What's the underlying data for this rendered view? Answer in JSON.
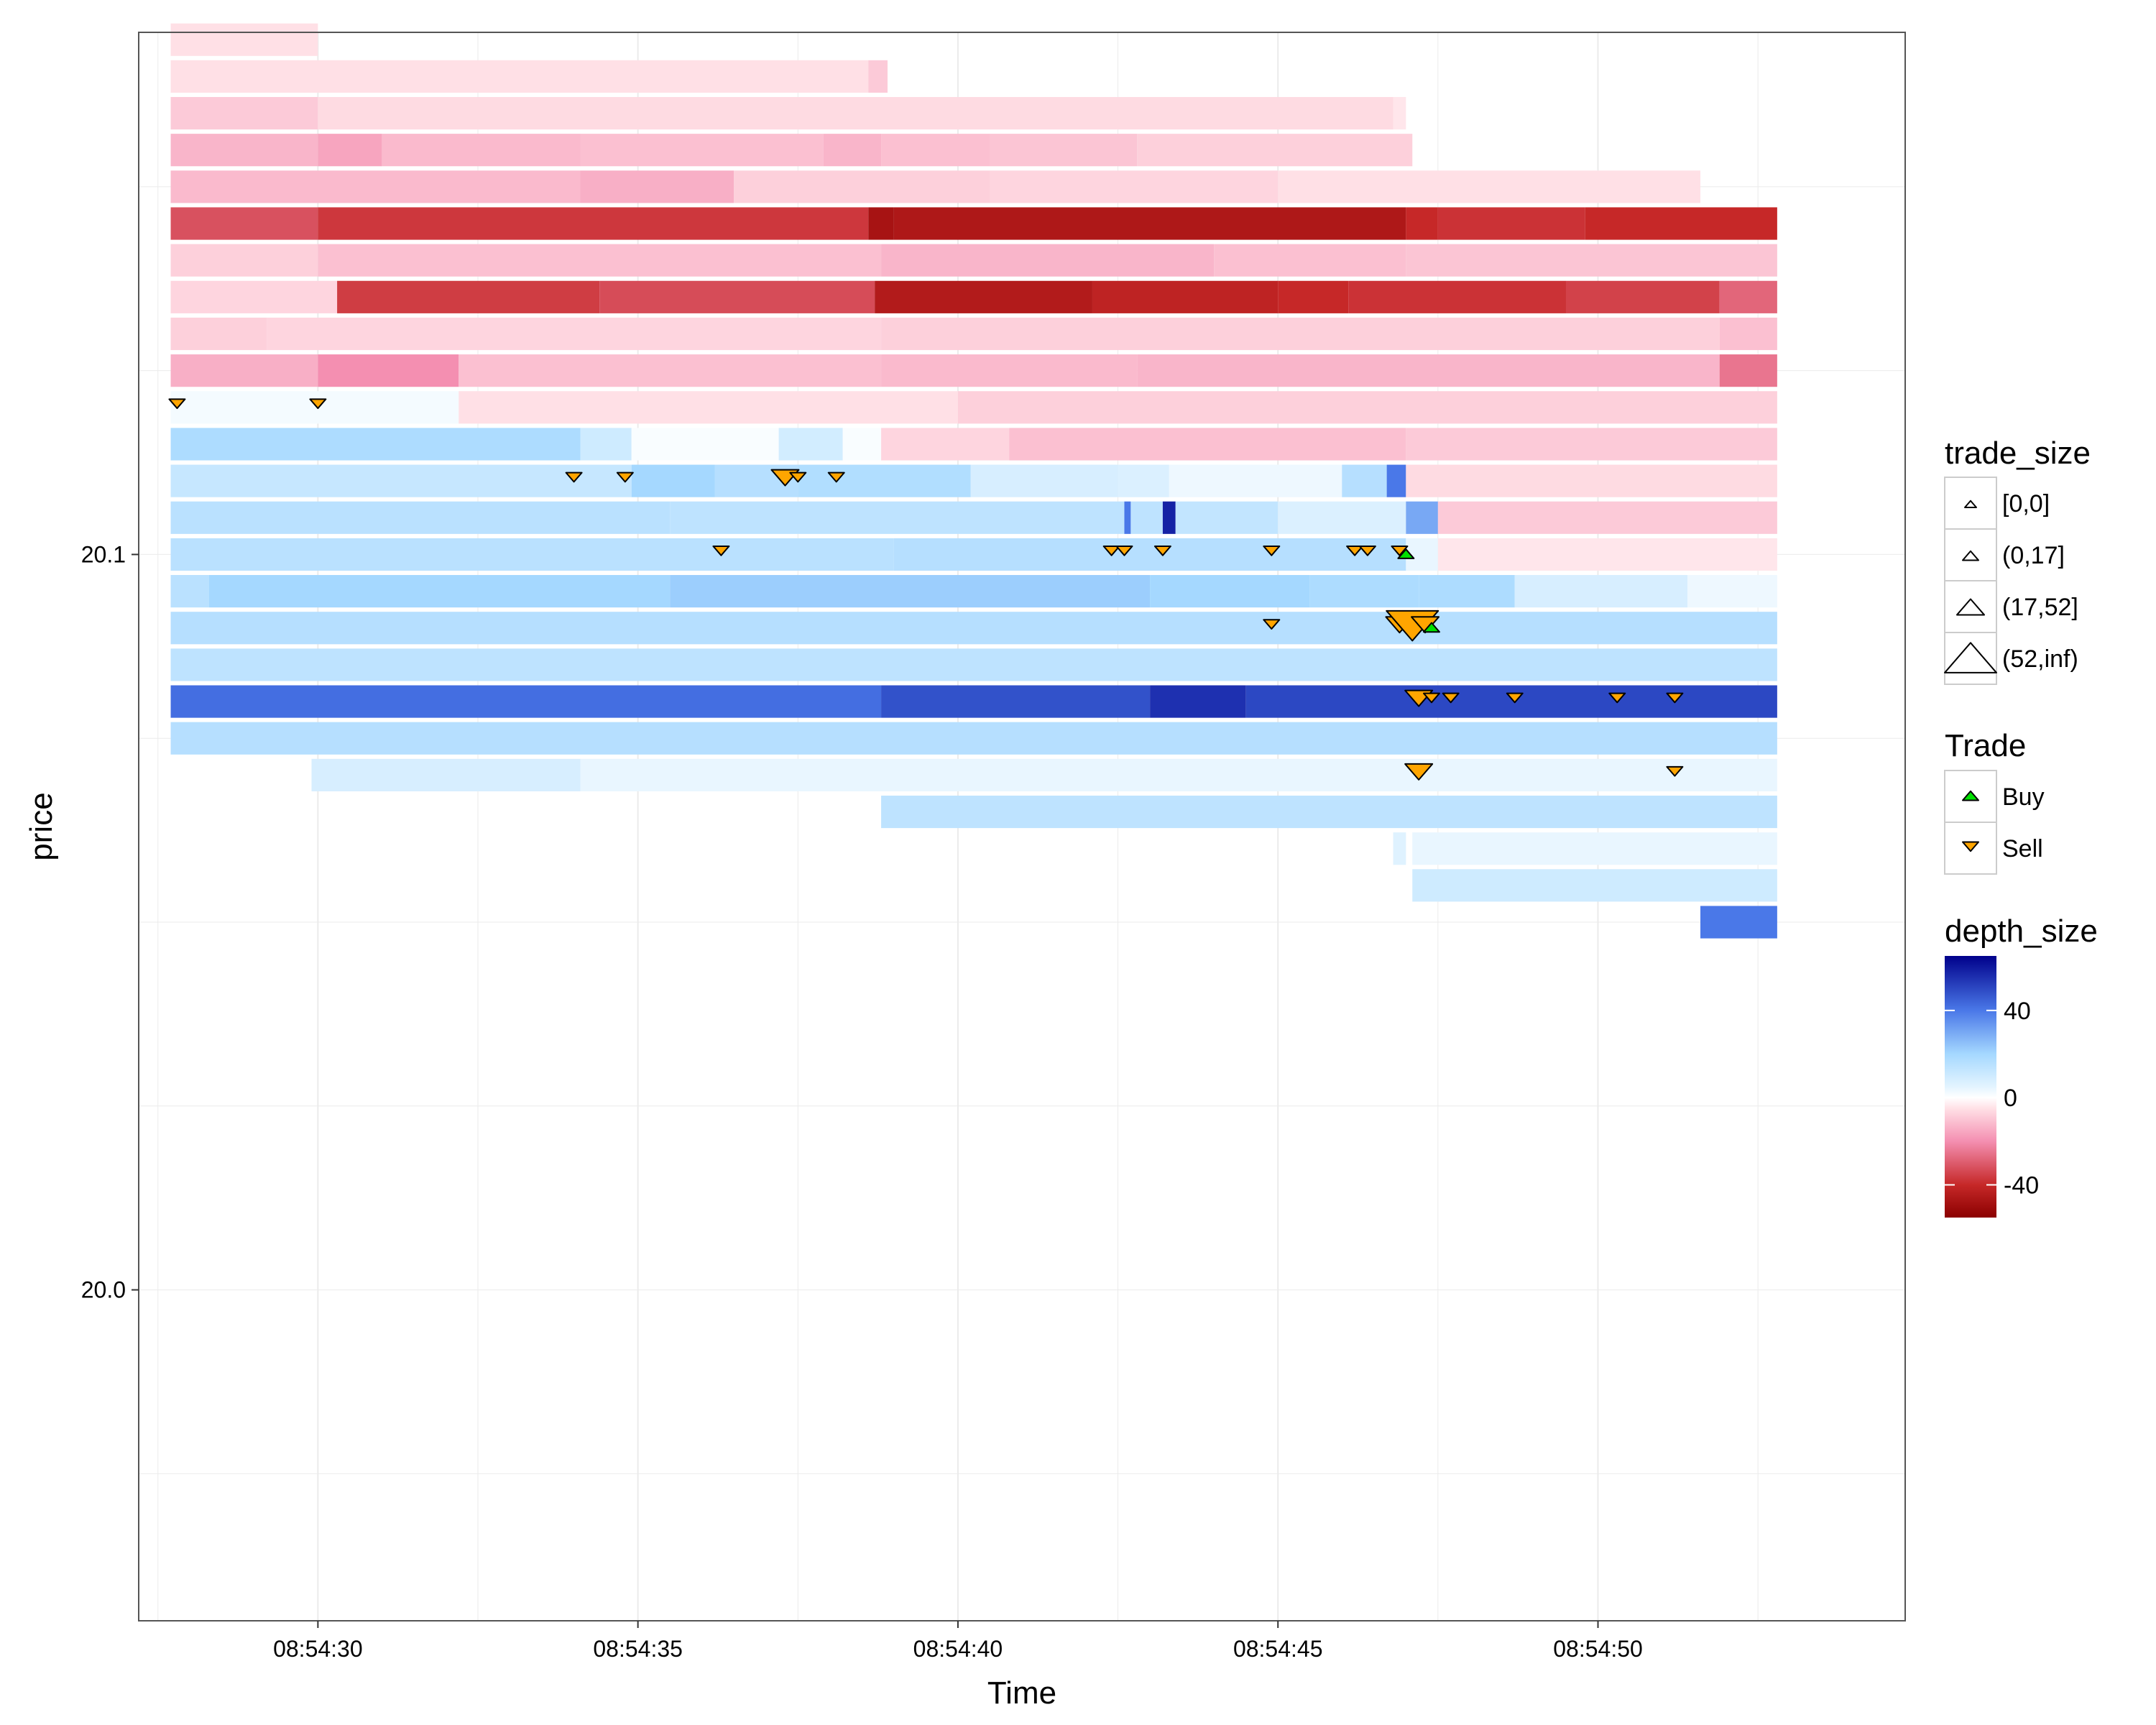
{
  "chart_data": {
    "type": "heatmap",
    "title": "",
    "xlabel": "Time",
    "ylabel": "price",
    "x_ticks": [
      "08:54:30",
      "08:54:35",
      "08:54:40",
      "08:54:45",
      "08:54:50"
    ],
    "y_ticks": [
      "20.0",
      "20.1"
    ],
    "xlim_seconds_after_08_54": [
      27.2,
      54.8
    ],
    "ylim": [
      19.955,
      20.171
    ],
    "price_tick_size": 0.005,
    "grid": true,
    "legend_position": "right",
    "colors": {
      "panel_border": "#555555",
      "grid": "#ebebeb",
      "buy": "#00e000",
      "sell": "#ffa500"
    },
    "depth_size_scale": {
      "title": "depth_size",
      "min": -55,
      "max": 65,
      "tick_labels": [
        "40",
        "0",
        "-40"
      ],
      "tick_values": [
        40,
        0,
        -40
      ],
      "colors": [
        {
          "value": -55,
          "color": "#8b0000"
        },
        {
          "value": -40,
          "color": "#c62828"
        },
        {
          "value": -20,
          "color": "#f48fb1"
        },
        {
          "value": -5,
          "color": "#ffe0e6"
        },
        {
          "value": 0,
          "color": "#ffffff"
        },
        {
          "value": 5,
          "color": "#e3f4ff"
        },
        {
          "value": 20,
          "color": "#a5d8ff"
        },
        {
          "value": 40,
          "color": "#4a78e8"
        },
        {
          "value": 65,
          "color": "#00008b"
        }
      ]
    },
    "trade_size_legend": {
      "title": "trade_size",
      "items": [
        "[0,0]",
        "(0,17]",
        "(17,52]",
        "(52,inf)"
      ]
    },
    "trade_legend": {
      "title": "Trade",
      "items": [
        {
          "label": "Buy",
          "color": "#00e000"
        },
        {
          "label": "Sell",
          "color": "#ffa500"
        }
      ]
    },
    "depth_rows": [
      {
        "price": 20.17,
        "segments": [
          [
            27.7,
            30.0,
            -5
          ]
        ]
      },
      {
        "price": 20.165,
        "segments": [
          [
            27.7,
            38.6,
            -5
          ],
          [
            38.6,
            38.9,
            -9
          ]
        ]
      },
      {
        "price": 20.16,
        "segments": [
          [
            27.7,
            30.0,
            -9
          ],
          [
            30.0,
            46.8,
            -6
          ],
          [
            46.8,
            47.0,
            -4
          ]
        ]
      },
      {
        "price": 20.155,
        "segments": [
          [
            27.7,
            30.0,
            -13
          ],
          [
            30.0,
            31.0,
            -16
          ],
          [
            31.0,
            34.1,
            -12
          ],
          [
            34.1,
            37.9,
            -11
          ],
          [
            37.9,
            38.8,
            -13
          ],
          [
            38.8,
            40.5,
            -11
          ],
          [
            40.5,
            42.8,
            -10
          ],
          [
            42.8,
            47.1,
            -8
          ]
        ]
      },
      {
        "price": 20.15,
        "segments": [
          [
            27.7,
            34.1,
            -12
          ],
          [
            34.1,
            36.5,
            -14
          ],
          [
            36.5,
            40.5,
            -8
          ],
          [
            40.5,
            45.0,
            -7
          ],
          [
            45.0,
            51.6,
            -5
          ]
        ]
      },
      {
        "price": 20.145,
        "segments": [
          [
            27.7,
            30.0,
            -32
          ],
          [
            30.0,
            38.6,
            -37
          ],
          [
            38.6,
            39.0,
            -48
          ],
          [
            39.0,
            47.0,
            -46
          ],
          [
            47.0,
            47.5,
            -40
          ],
          [
            47.5,
            49.8,
            -38
          ],
          [
            49.8,
            52.8,
            -40
          ]
        ]
      },
      {
        "price": 20.14,
        "segments": [
          [
            27.7,
            30.0,
            -8
          ],
          [
            30.0,
            38.8,
            -11
          ],
          [
            38.8,
            44.0,
            -13
          ],
          [
            44.0,
            47.0,
            -11
          ],
          [
            47.0,
            52.8,
            -10
          ]
        ]
      },
      {
        "price": 20.135,
        "segments": [
          [
            27.7,
            30.3,
            -7
          ],
          [
            30.3,
            34.4,
            -36
          ],
          [
            34.4,
            38.7,
            -33
          ],
          [
            38.7,
            42.1,
            -45
          ],
          [
            42.1,
            45.0,
            -42
          ],
          [
            45.0,
            46.1,
            -40
          ],
          [
            46.1,
            49.5,
            -38
          ],
          [
            49.5,
            51.9,
            -35
          ],
          [
            51.9,
            52.8,
            -28
          ]
        ]
      },
      {
        "price": 20.13,
        "segments": [
          [
            27.7,
            29.2,
            -8
          ],
          [
            29.2,
            38.8,
            -7
          ],
          [
            38.8,
            51.9,
            -8
          ],
          [
            51.9,
            52.8,
            -11
          ]
        ]
      },
      {
        "price": 20.125,
        "segments": [
          [
            27.7,
            30.0,
            -14
          ],
          [
            30.0,
            32.2,
            -20
          ],
          [
            32.2,
            38.8,
            -11
          ],
          [
            38.8,
            42.8,
            -12
          ],
          [
            42.8,
            51.9,
            -13
          ],
          [
            51.9,
            52.8,
            -25
          ]
        ]
      },
      {
        "price": 20.12,
        "segments": [
          [
            27.7,
            32.2,
            2
          ],
          [
            32.2,
            40.0,
            -5
          ],
          [
            40.0,
            52.8,
            -8
          ]
        ]
      },
      {
        "price": 20.115,
        "segments": [
          [
            27.7,
            34.1,
            18
          ],
          [
            34.1,
            34.9,
            10
          ],
          [
            34.9,
            37.2,
            1
          ],
          [
            37.2,
            38.2,
            9
          ],
          [
            38.2,
            38.8,
            1
          ],
          [
            38.8,
            40.8,
            -7
          ],
          [
            40.8,
            47.0,
            -11
          ],
          [
            47.0,
            52.8,
            -9
          ]
        ]
      },
      {
        "price": 20.11,
        "segments": [
          [
            27.7,
            34.9,
            12
          ],
          [
            34.9,
            36.2,
            20
          ],
          [
            36.2,
            37.5,
            16
          ],
          [
            37.5,
            40.2,
            17
          ],
          [
            40.2,
            42.5,
            8
          ],
          [
            42.5,
            43.3,
            7
          ],
          [
            43.3,
            46.0,
            3
          ],
          [
            46.0,
            46.7,
            16
          ],
          [
            46.7,
            47.0,
            40
          ],
          [
            47.0,
            52.8,
            -6
          ]
        ]
      },
      {
        "price": 20.105,
        "segments": [
          [
            27.7,
            35.5,
            15
          ],
          [
            35.5,
            42.6,
            14
          ],
          [
            42.6,
            42.7,
            40
          ],
          [
            42.7,
            43.2,
            14
          ],
          [
            43.2,
            43.4,
            58
          ],
          [
            43.4,
            45.0,
            13
          ],
          [
            45.0,
            47.0,
            7
          ],
          [
            47.0,
            47.5,
            30
          ],
          [
            47.5,
            52.8,
            -9
          ]
        ]
      },
      {
        "price": 20.1,
        "segments": [
          [
            27.7,
            39.0,
            15
          ],
          [
            39.0,
            47.0,
            16
          ],
          [
            47.0,
            47.5,
            4
          ],
          [
            47.5,
            52.8,
            -4
          ]
        ]
      },
      {
        "price": 20.095,
        "segments": [
          [
            27.7,
            28.3,
            15
          ],
          [
            28.3,
            35.5,
            20
          ],
          [
            35.5,
            43.0,
            22
          ],
          [
            43.0,
            45.5,
            20
          ],
          [
            45.5,
            47.2,
            18
          ],
          [
            47.2,
            48.7,
            18
          ],
          [
            48.7,
            51.4,
            8
          ],
          [
            51.4,
            52.8,
            3
          ]
        ]
      },
      {
        "price": 20.09,
        "segments": [
          [
            27.7,
            52.8,
            16
          ]
        ]
      },
      {
        "price": 20.085,
        "segments": [
          [
            27.7,
            52.8,
            14
          ]
        ]
      },
      {
        "price": 20.08,
        "segments": [
          [
            27.7,
            38.8,
            42
          ],
          [
            38.8,
            43.0,
            48
          ],
          [
            43.0,
            44.5,
            55
          ],
          [
            44.5,
            52.8,
            50
          ]
        ]
      },
      {
        "price": 20.075,
        "segments": [
          [
            27.7,
            52.8,
            16
          ]
        ]
      },
      {
        "price": 20.07,
        "segments": [
          [
            29.9,
            34.1,
            8
          ],
          [
            34.1,
            52.8,
            4
          ]
        ]
      },
      {
        "price": 20.065,
        "segments": [
          [
            38.8,
            52.8,
            14
          ]
        ]
      },
      {
        "price": 20.06,
        "segments": [
          [
            46.8,
            47.0,
            6
          ],
          [
            47.1,
            52.8,
            4
          ]
        ]
      },
      {
        "price": 20.055,
        "segments": [
          [
            47.1,
            52.8,
            10
          ]
        ]
      },
      {
        "price": 20.05,
        "segments": [
          [
            51.6,
            52.8,
            40
          ]
        ]
      }
    ],
    "trades": [
      {
        "time": 27.8,
        "price": 20.12,
        "side": "Sell",
        "size": "(0,17]"
      },
      {
        "time": 30.0,
        "price": 20.12,
        "side": "Sell",
        "size": "(0,17]"
      },
      {
        "time": 34.0,
        "price": 20.11,
        "side": "Sell",
        "size": "(0,17]"
      },
      {
        "time": 34.8,
        "price": 20.11,
        "side": "Sell",
        "size": "(0,17]"
      },
      {
        "time": 37.3,
        "price": 20.11,
        "side": "Sell",
        "size": "(17,52]"
      },
      {
        "time": 37.5,
        "price": 20.11,
        "side": "Sell",
        "size": "(0,17]"
      },
      {
        "time": 38.1,
        "price": 20.11,
        "side": "Sell",
        "size": "(0,17]"
      },
      {
        "time": 36.3,
        "price": 20.1,
        "side": "Sell",
        "size": "(0,17]"
      },
      {
        "time": 42.4,
        "price": 20.1,
        "side": "Sell",
        "size": "(0,17]"
      },
      {
        "time": 42.6,
        "price": 20.1,
        "side": "Sell",
        "size": "(0,17]"
      },
      {
        "time": 43.2,
        "price": 20.1,
        "side": "Sell",
        "size": "(0,17]"
      },
      {
        "time": 44.9,
        "price": 20.1,
        "side": "Sell",
        "size": "(0,17]"
      },
      {
        "time": 46.2,
        "price": 20.1,
        "side": "Sell",
        "size": "(0,17]"
      },
      {
        "time": 46.4,
        "price": 20.1,
        "side": "Sell",
        "size": "(0,17]"
      },
      {
        "time": 46.9,
        "price": 20.1,
        "side": "Sell",
        "size": "(0,17]"
      },
      {
        "time": 47.0,
        "price": 20.1,
        "side": "Buy",
        "size": "(0,17]"
      },
      {
        "time": 44.9,
        "price": 20.09,
        "side": "Sell",
        "size": "(0,17]"
      },
      {
        "time": 46.9,
        "price": 20.09,
        "side": "Sell",
        "size": "(17,52]"
      },
      {
        "time": 47.1,
        "price": 20.09,
        "side": "Sell",
        "size": "(52,inf)"
      },
      {
        "time": 47.3,
        "price": 20.09,
        "side": "Sell",
        "size": "(17,52]"
      },
      {
        "time": 47.4,
        "price": 20.09,
        "side": "Buy",
        "size": "(0,17]"
      },
      {
        "time": 47.2,
        "price": 20.08,
        "side": "Sell",
        "size": "(17,52]"
      },
      {
        "time": 47.4,
        "price": 20.08,
        "side": "Sell",
        "size": "(0,17]"
      },
      {
        "time": 47.7,
        "price": 20.08,
        "side": "Sell",
        "size": "(0,17]"
      },
      {
        "time": 48.7,
        "price": 20.08,
        "side": "Sell",
        "size": "(0,17]"
      },
      {
        "time": 50.3,
        "price": 20.08,
        "side": "Sell",
        "size": "(0,17]"
      },
      {
        "time": 51.2,
        "price": 20.08,
        "side": "Sell",
        "size": "(0,17]"
      },
      {
        "time": 47.2,
        "price": 20.07,
        "side": "Sell",
        "size": "(17,52]"
      },
      {
        "time": 51.2,
        "price": 20.07,
        "side": "Sell",
        "size": "(0,17]"
      }
    ]
  }
}
